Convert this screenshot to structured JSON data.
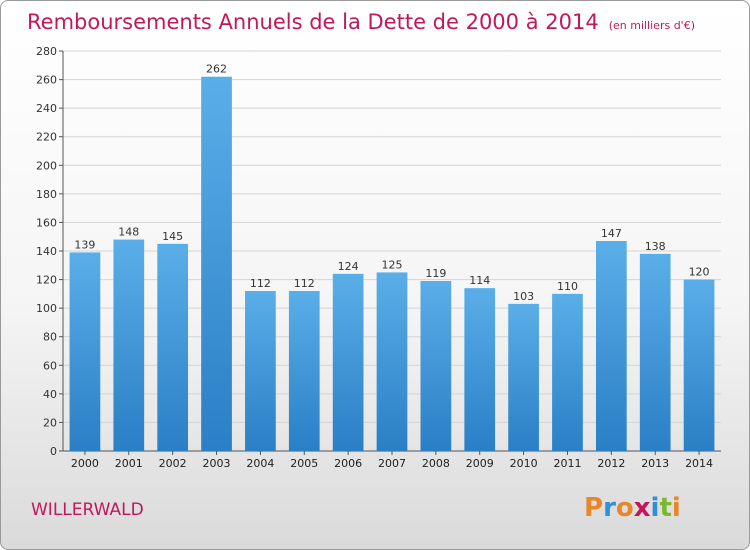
{
  "colors": {
    "bar_light": "#5aaee8",
    "bar_dark": "#2a7fc6",
    "title": "#c2185b",
    "grid": "#d4d4d4"
  },
  "footer": {
    "commune": "WILLERWALD",
    "logo": {
      "letters": [
        "P",
        "r",
        "o",
        "x",
        "i",
        "t",
        "i"
      ],
      "colors": [
        "#e8862a",
        "#2f8fd8",
        "#e8862a",
        "#c2185b",
        "#2f8fd8",
        "#7cb82f",
        "#e8862a"
      ]
    }
  },
  "chart_data": {
    "type": "bar",
    "title": "Remboursements Annuels de la Dette de 2000 à 2014",
    "subtitle": "(en milliers d'€)",
    "xlabel": "",
    "ylabel": "",
    "categories": [
      "2000",
      "2001",
      "2002",
      "2003",
      "2004",
      "2005",
      "2006",
      "2007",
      "2008",
      "2009",
      "2010",
      "2011",
      "2012",
      "2013",
      "2014"
    ],
    "values": [
      139,
      148,
      145,
      262,
      112,
      112,
      124,
      125,
      119,
      114,
      103,
      110,
      147,
      138,
      120
    ],
    "ylim": [
      0,
      280
    ],
    "yticks": [
      0,
      20,
      40,
      60,
      80,
      100,
      120,
      140,
      160,
      180,
      200,
      220,
      240,
      260,
      280
    ],
    "grid": true
  }
}
